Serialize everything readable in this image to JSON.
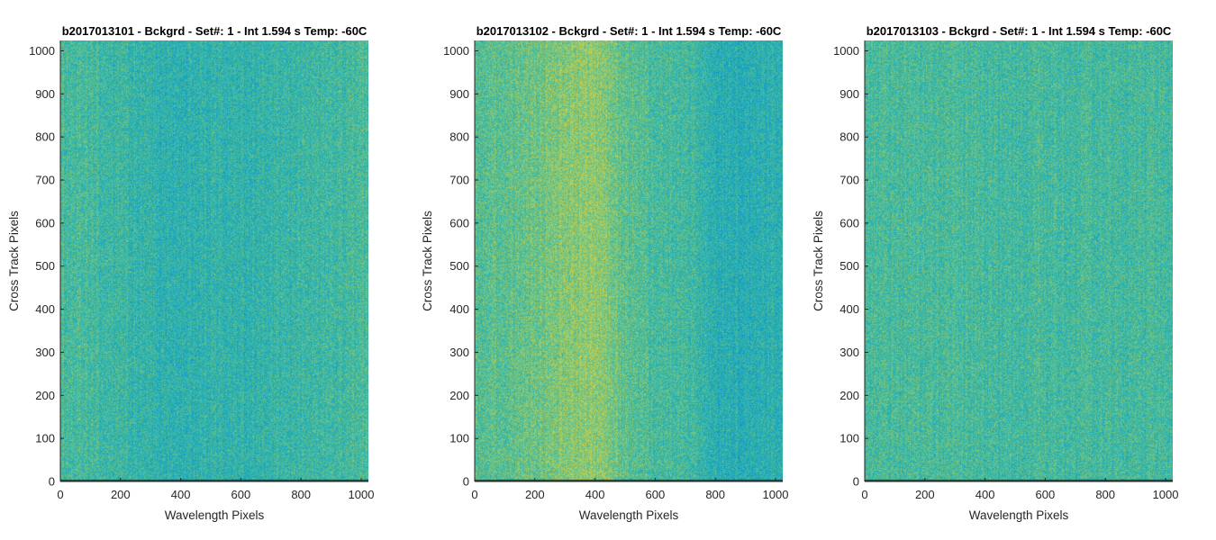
{
  "chart_data": [
    {
      "type": "heatmap",
      "title": "b2017013101 - Bckgrd - Set#: 1 - Int 1.594 s Temp: -60C",
      "xlabel": "Wavelength Pixels",
      "ylabel": "Cross Track Pixels",
      "xlim": [
        0,
        1024
      ],
      "ylim": [
        0,
        1024
      ],
      "xticks": [
        0,
        200,
        400,
        600,
        800,
        1000
      ],
      "yticks": [
        0,
        100,
        200,
        300,
        400,
        500,
        600,
        700,
        800,
        900,
        1000
      ],
      "column_intensity": {
        "x": [
          0,
          100,
          200,
          300,
          400,
          500,
          600,
          700,
          800,
          900,
          1024
        ],
        "level": [
          0.52,
          0.5,
          0.45,
          0.4,
          0.38,
          0.42,
          0.4,
          0.42,
          0.45,
          0.48,
          0.52
        ]
      },
      "colormap": [
        "#0f88cc",
        "#17a1c4",
        "#2db3ad",
        "#57bf92",
        "#98c96b",
        "#d0cf45"
      ],
      "bottom_row_color": "#2b3a3a"
    },
    {
      "type": "heatmap",
      "title": "b2017013102 - Bckgrd - Set#: 1 - Int 1.594 s Temp: -60C",
      "xlabel": "Wavelength Pixels",
      "ylabel": "Cross Track Pixels",
      "xlim": [
        0,
        1024
      ],
      "ylim": [
        0,
        1024
      ],
      "xticks": [
        0,
        200,
        400,
        600,
        800,
        1000
      ],
      "yticks": [
        0,
        100,
        200,
        300,
        400,
        500,
        600,
        700,
        800,
        900,
        1000
      ],
      "column_intensity": {
        "x": [
          0,
          100,
          200,
          300,
          400,
          500,
          600,
          700,
          800,
          900,
          1024
        ],
        "level": [
          0.55,
          0.6,
          0.66,
          0.74,
          0.78,
          0.6,
          0.52,
          0.5,
          0.36,
          0.34,
          0.38
        ]
      },
      "colormap": [
        "#0f88cc",
        "#17a1c4",
        "#2db3ad",
        "#57bf92",
        "#98c96b",
        "#d0cf45"
      ],
      "bottom_row_color": "#2b3a3a"
    },
    {
      "type": "heatmap",
      "title": "b2017013103 - Bckgrd - Set#: 1 - Int 1.594 s Temp: -60C",
      "xlabel": "Wavelength Pixels",
      "ylabel": "Cross Track Pixels",
      "xlim": [
        0,
        1024
      ],
      "ylim": [
        0,
        1024
      ],
      "xticks": [
        0,
        200,
        400,
        600,
        800,
        1000
      ],
      "yticks": [
        0,
        100,
        200,
        300,
        400,
        500,
        600,
        700,
        800,
        900,
        1000
      ],
      "column_intensity": {
        "x": [
          0,
          100,
          200,
          300,
          400,
          500,
          600,
          700,
          800,
          900,
          1024
        ],
        "level": [
          0.5,
          0.52,
          0.5,
          0.52,
          0.5,
          0.48,
          0.52,
          0.5,
          0.52,
          0.5,
          0.5
        ]
      },
      "colormap": [
        "#0f88cc",
        "#17a1c4",
        "#2db3ad",
        "#57bf92",
        "#98c96b",
        "#d0cf45"
      ],
      "bottom_row_color": "#2b3a3a"
    }
  ]
}
